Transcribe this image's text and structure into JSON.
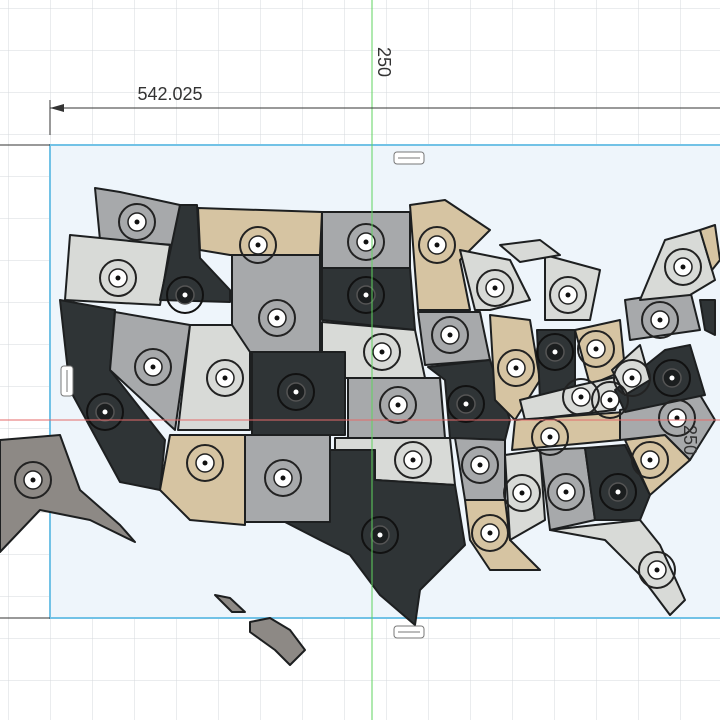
{
  "dimensions": {
    "width": "542.025",
    "top": "250",
    "right": "250"
  }
}
